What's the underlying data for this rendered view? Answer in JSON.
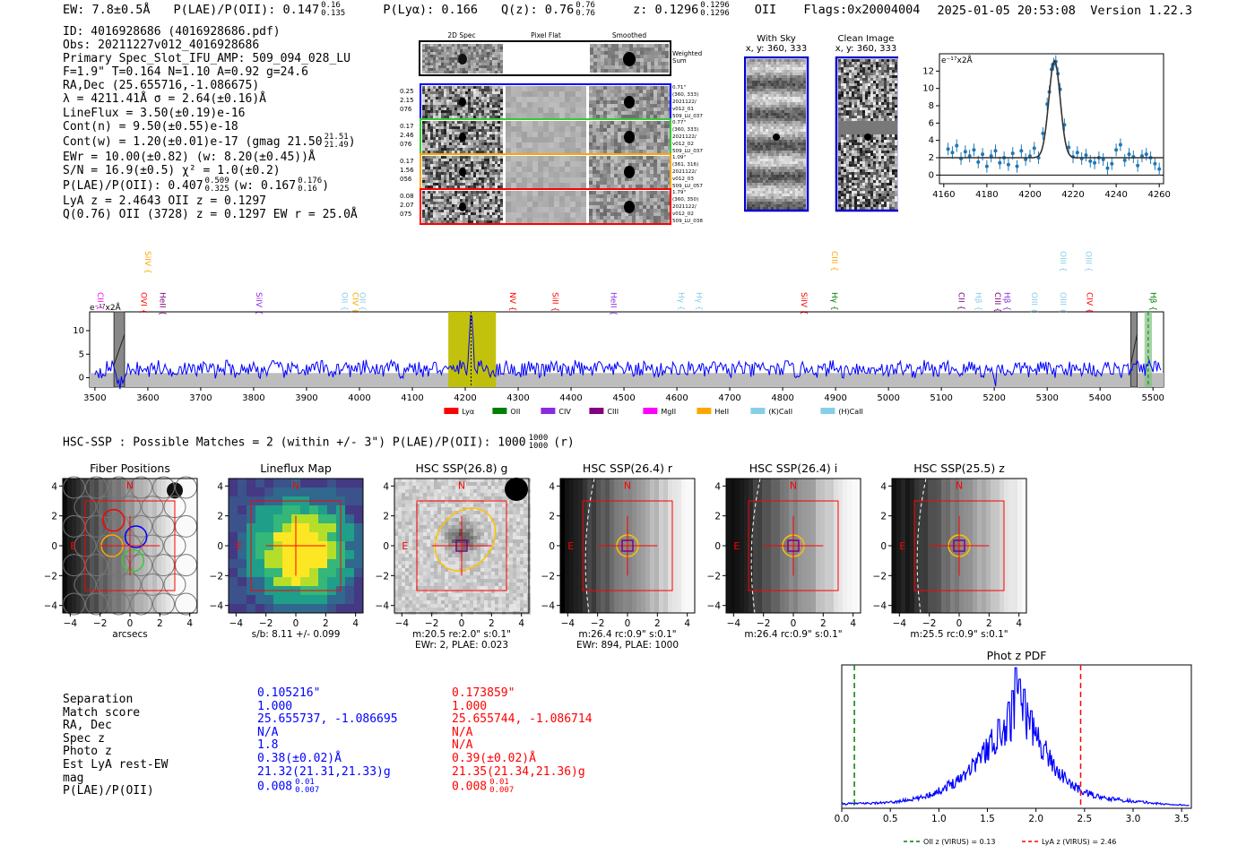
{
  "header": {
    "ew": "EW: 7.8±0.5Å",
    "plae": "P(LAE)/P(OII): 0.147",
    "plae_sup": "0.16",
    "plae_sub": "0.135",
    "plya": "P(Lyα): 0.166",
    "qz": "Q(z): 0.76",
    "qz_sup": "0.76",
    "qz_sub": "0.76",
    "z": "z: 0.1296",
    "z_sup": "0.1296",
    "z_sub": "0.1296",
    "z_line": "OII",
    "flags": "Flags:0x20004004",
    "datetime": "2025-01-05 20:53:08",
    "version": "Version 1.22.3"
  },
  "info": [
    "ID: 4016928686 (4016928686.pdf)",
    "Obs: 20211227v012_4016928686",
    "Primary Spec_Slot_IFU_AMP: 509_094_028_LU",
    "F=1.9\"  T=0.164  N=1.10  A=0.92  g=24.6",
    "RA,Dec (25.655716,-1.086675)",
    "λ = 4211.41Å  σ = 2.64(±0.16)Å",
    "LineFlux = 3.50(±0.19)e-16",
    "Cont(n) = 9.50(±0.55)e-18",
    "Cont(w) = 1.20(±0.01)e-17 (gmag 21.50",
    "EWr = 10.00(±0.82) (w: 8.20(±0.45))Å",
    "S/N = 16.9(±0.5)  χ² = 1.0(±0.2)",
    "P(LAE)/P(OII): 0.407",
    "LyA z = 2.4643  OII z = 0.1297",
    "Q(0.76) OII (3728) z = 0.1297  EW r = 25.0Å"
  ],
  "info_extras": {
    "gmag_sup": "21.51",
    "gmag_sub": "21.49",
    "plae_sup": "0.509",
    "plae_sub": "0.325",
    "plae_w": "(w: 0.167",
    "plae_w_sup": "0.176",
    "plae_w_sub": "0.16"
  },
  "fiber_stamps": {
    "titles": [
      "2D Spec",
      "Pixel Flat",
      "Smoothed"
    ],
    "weighted_label": [
      "Weighted",
      "Sum"
    ],
    "rows": [
      {
        "left": [
          "0.25",
          "2.15",
          "076"
        ],
        "right": [
          "0.71\"",
          "(360, 333)",
          "2021122/",
          "v012_01",
          "509_LU_037"
        ],
        "color": "#0000ff"
      },
      {
        "left": [
          "0.17",
          "2.46",
          "076"
        ],
        "right": [
          "0.77\"",
          "(360, 333)",
          "2021122/",
          "v012_02",
          "509_LU_037"
        ],
        "color": "#33cc33"
      },
      {
        "left": [
          "0.17",
          "1.56",
          "056"
        ],
        "right": [
          "1.09\"",
          "(361, 316)",
          "2021122/",
          "v012_03",
          "509_LU_057"
        ],
        "color": "#ffa500"
      },
      {
        "left": [
          "0.08",
          "2.07",
          "075"
        ],
        "right": [
          "1.79\"",
          "(360, 350)",
          "2021122/",
          "v012_02",
          "509_LU_038"
        ],
        "color": "#ff0000"
      }
    ]
  },
  "sky_panels": {
    "with_sky": [
      "With Sky",
      "x, y: 360, 333"
    ],
    "clean": [
      "Clean Image",
      "x, y: 360, 333"
    ]
  },
  "chart_data": [
    {
      "type": "line",
      "name": "zoom_spectrum",
      "ylabel_unit": "e⁻¹⁷x2Å",
      "xlim": [
        4158,
        4262
      ],
      "ylim": [
        -1,
        14
      ],
      "xticks": [
        4160,
        4180,
        4200,
        4220,
        4240,
        4260
      ],
      "yticks": [
        0,
        2,
        4,
        6,
        8,
        10,
        12
      ],
      "gauss": {
        "mu": 4211.4,
        "sigma": 2.64,
        "amp": 11.2,
        "base": 2.0
      },
      "points": [
        [
          4162,
          3.0
        ],
        [
          4164,
          2.6
        ],
        [
          4166,
          3.4
        ],
        [
          4168,
          1.9
        ],
        [
          4170,
          2.7
        ],
        [
          4172,
          2.2
        ],
        [
          4174,
          2.9
        ],
        [
          4176,
          1.5
        ],
        [
          4178,
          2.4
        ],
        [
          4180,
          1.0
        ],
        [
          4182,
          2.2
        ],
        [
          4184,
          2.8
        ],
        [
          4186,
          1.4
        ],
        [
          4188,
          2.0
        ],
        [
          4190,
          1.2
        ],
        [
          4192,
          2.5
        ],
        [
          4194,
          1.0
        ],
        [
          4196,
          2.8
        ],
        [
          4198,
          1.8
        ],
        [
          4200,
          2.2
        ],
        [
          4202,
          3.1
        ],
        [
          4204,
          2.0
        ],
        [
          4206,
          4.8
        ],
        [
          4208,
          8.2
        ],
        [
          4209,
          9.6
        ],
        [
          4210,
          12.2
        ],
        [
          4211,
          12.8
        ],
        [
          4212,
          13.1
        ],
        [
          4213,
          11.7
        ],
        [
          4214,
          9.9
        ],
        [
          4216,
          5.8
        ],
        [
          4218,
          3.2
        ],
        [
          4220,
          2.1
        ],
        [
          4222,
          2.6
        ],
        [
          4224,
          1.9
        ],
        [
          4226,
          2.3
        ],
        [
          4228,
          1.6
        ],
        [
          4230,
          1.4
        ],
        [
          4232,
          2.0
        ],
        [
          4234,
          1.8
        ],
        [
          4236,
          0.8
        ],
        [
          4238,
          1.3
        ],
        [
          4240,
          2.9
        ],
        [
          4242,
          3.5
        ],
        [
          4244,
          1.7
        ],
        [
          4246,
          2.4
        ],
        [
          4248,
          2.1
        ],
        [
          4250,
          1.1
        ],
        [
          4252,
          2.2
        ],
        [
          4254,
          2.4
        ],
        [
          4256,
          2.0
        ],
        [
          4258,
          1.3
        ],
        [
          4260,
          0.7
        ]
      ]
    },
    {
      "type": "line",
      "name": "full_spectrum",
      "ylabel_unit": "e⁻¹⁷x2Å",
      "xlim": [
        3490,
        5520
      ],
      "ylim": [
        -2,
        14
      ],
      "xticks": [
        3500,
        3600,
        3700,
        3800,
        3900,
        4000,
        4100,
        4200,
        4300,
        4400,
        4500,
        4600,
        4700,
        4800,
        4900,
        5000,
        5100,
        5200,
        5300,
        5400,
        5500
      ],
      "yticks": [
        0,
        5,
        10
      ],
      "line_center": 4211,
      "highlight": [
        4168,
        4258
      ],
      "hatched_regions": [
        [
          3536,
          3556
        ],
        [
          5458,
          5470
        ]
      ],
      "green_band": [
        5484,
        5498
      ],
      "line_labels": [
        {
          "label": "CII",
          "wl": 3500,
          "color": "#ff00ff",
          "row": 1
        },
        {
          "label": "SiIV",
          "wl": 3590,
          "color": "#ffa500",
          "row": 0
        },
        {
          "label": "OVI",
          "wl": 3582,
          "color": "#ff0000",
          "row": 1
        },
        {
          "label": "HeII",
          "wl": 3618,
          "color": "#800080",
          "row": 1
        },
        {
          "label": "SiIV",
          "wl": 3800,
          "color": "#8a2be2",
          "row": 1
        },
        {
          "label": "OII",
          "wl": 3962,
          "color": "#87ceeb",
          "row": 1
        },
        {
          "label": "CIV",
          "wl": 3982,
          "color": "#ffa500",
          "row": 1
        },
        {
          "label": "OII",
          "wl": 3996,
          "color": "#87ceeb",
          "row": 1
        },
        {
          "label": "NV",
          "wl": 4280,
          "color": "#ff0000",
          "row": 1
        },
        {
          "label": "SiII",
          "wl": 4360,
          "color": "#ff0000",
          "row": 1
        },
        {
          "label": "HeII",
          "wl": 4470,
          "color": "#8a2be2",
          "row": 1
        },
        {
          "label": "Hγ",
          "wl": 4598,
          "color": "#87ceeb",
          "row": 1
        },
        {
          "label": "Hγ",
          "wl": 4632,
          "color": "#87ceeb",
          "row": 1
        },
        {
          "label": "SiIV",
          "wl": 4830,
          "color": "#ff0000",
          "row": 1
        },
        {
          "label": "CIII",
          "wl": 4888,
          "color": "#ffa500",
          "row": 0
        },
        {
          "label": "Hγ",
          "wl": 4888,
          "color": "#008000",
          "row": 1
        },
        {
          "label": "CII",
          "wl": 5128,
          "color": "#800080",
          "row": 1
        },
        {
          "label": "Hβ",
          "wl": 5160,
          "color": "#87ceeb",
          "row": 1
        },
        {
          "label": "CIII",
          "wl": 5196,
          "color": "#800080",
          "row": 1
        },
        {
          "label": "Hβ",
          "wl": 5214,
          "color": "#8a2be2",
          "row": 1
        },
        {
          "label": "OIII",
          "wl": 5266,
          "color": "#87ceeb",
          "row": 1
        },
        {
          "label": "OIII",
          "wl": 5320,
          "color": "#87ceeb",
          "row": 0
        },
        {
          "label": "OIII",
          "wl": 5320,
          "color": "#87ceeb",
          "row": 1
        },
        {
          "label": "OIII",
          "wl": 5368,
          "color": "#87ceeb",
          "row": 0
        },
        {
          "label": "CIV",
          "wl": 5370,
          "color": "#ff0000",
          "row": 1
        },
        {
          "label": "Hβ",
          "wl": 5490,
          "color": "#008000",
          "row": 1
        }
      ],
      "legend": [
        {
          "label": "Lyα",
          "color": "#ff0000"
        },
        {
          "label": "OII",
          "color": "#008000"
        },
        {
          "label": "CIV",
          "color": "#8a2be2"
        },
        {
          "label": "CIII",
          "color": "#800080"
        },
        {
          "label": "MgII",
          "color": "#ff00ff"
        },
        {
          "label": "HeII",
          "color": "#ffa500"
        },
        {
          "label": "(K)CaII",
          "color": "#87ceeb"
        },
        {
          "label": "(H)CaII",
          "color": "#87ceeb"
        }
      ]
    },
    {
      "type": "line",
      "name": "photz_pdf",
      "title": "Phot z PDF",
      "xlim": [
        0.0,
        3.6
      ],
      "ylim": [
        0,
        1.0
      ],
      "xticks": [
        0.0,
        0.5,
        1.0,
        1.5,
        2.0,
        2.5,
        3.0,
        3.5
      ],
      "vlines": [
        {
          "x": 0.13,
          "color": "#008000",
          "label": "OII z (VIRUS) = 0.13"
        },
        {
          "x": 2.46,
          "color": "#ff0000",
          "label": "LyA z (VIRUS) = 2.46"
        }
      ],
      "envelope": [
        [
          0.0,
          0.03
        ],
        [
          0.5,
          0.04
        ],
        [
          0.8,
          0.07
        ],
        [
          1.0,
          0.12
        ],
        [
          1.2,
          0.2
        ],
        [
          1.4,
          0.34
        ],
        [
          1.55,
          0.46
        ],
        [
          1.7,
          0.55
        ],
        [
          1.8,
          0.66
        ],
        [
          1.85,
          0.72
        ],
        [
          1.9,
          0.62
        ],
        [
          2.0,
          0.5
        ],
        [
          2.1,
          0.4
        ],
        [
          2.2,
          0.28
        ],
        [
          2.35,
          0.17
        ],
        [
          2.5,
          0.11
        ],
        [
          2.7,
          0.07
        ],
        [
          3.0,
          0.05
        ],
        [
          3.3,
          0.03
        ],
        [
          3.6,
          0.02
        ]
      ],
      "peaks": [
        [
          1.79,
          0.98
        ],
        [
          1.83,
          0.9
        ],
        [
          1.76,
          0.82
        ],
        [
          1.88,
          0.83
        ],
        [
          1.72,
          0.74
        ],
        [
          1.95,
          0.68
        ],
        [
          1.62,
          0.62
        ]
      ]
    }
  ],
  "hsc_header": "HSC-SSP : Possible Matches = 2 (within +/- 3\")  P(LAE)/P(OII): 1000",
  "hsc_header_sup": "1000",
  "hsc_header_sub": "1000",
  "hsc_header_tail": "(r)",
  "cutouts": [
    {
      "title": "Fiber Positions",
      "caption": "arcsecs",
      "caption2": ""
    },
    {
      "title": "Lineflux Map",
      "caption": "s/b: 8.11 +/- 0.099",
      "caption2": ""
    },
    {
      "title": "HSC SSP(26.8) g",
      "caption": "m:20.5  re:2.0\"  s:0.1\"",
      "caption2": "EWr: 2, PLAE: 0.023"
    },
    {
      "title": "HSC SSP(26.4) r",
      "caption": "m:26.4 rc:0.9\"  s:0.1\"",
      "caption2": "EWr: 894, PLAE: 1000"
    },
    {
      "title": "HSC SSP(26.4) i",
      "caption": "m:26.4 rc:0.9\"  s:0.1\"",
      "caption2": ""
    },
    {
      "title": "HSC SSP(25.5) z",
      "caption": "m:25.5 rc:0.9\"  s:0.1\"",
      "caption2": ""
    }
  ],
  "cutout_axis": {
    "xticks": [
      "−4",
      "−2",
      "0",
      "2",
      "4"
    ],
    "yticks": [
      "4",
      "2",
      "0",
      "−2",
      "−4"
    ],
    "north": "N",
    "east": "E"
  },
  "bottom_table": {
    "labels": [
      "Separation",
      "Match score",
      "RA, Dec",
      "Spec z",
      "Photo z",
      "Est LyA rest-EW",
      "mag",
      "P(LAE)/P(OII)"
    ],
    "col1": [
      "",
      "0.105216\"",
      "1.000",
      "25.655737, -1.086695",
      "N/A",
      "1.8",
      "0.38(±0.02)Å",
      "21.32(21.31,21.33)g",
      "0.008"
    ],
    "col2": [
      "",
      "0.173859\"",
      "1.000",
      "25.655744, -1.086714",
      "N/A",
      "N/A",
      "0.39(±0.02)Å",
      "21.35(21.34,21.36)g",
      "0.008"
    ],
    "col1_sup": "0.01",
    "col1_sub": "0.007",
    "col2_sup": "0.01",
    "col2_sub": "0.007"
  }
}
